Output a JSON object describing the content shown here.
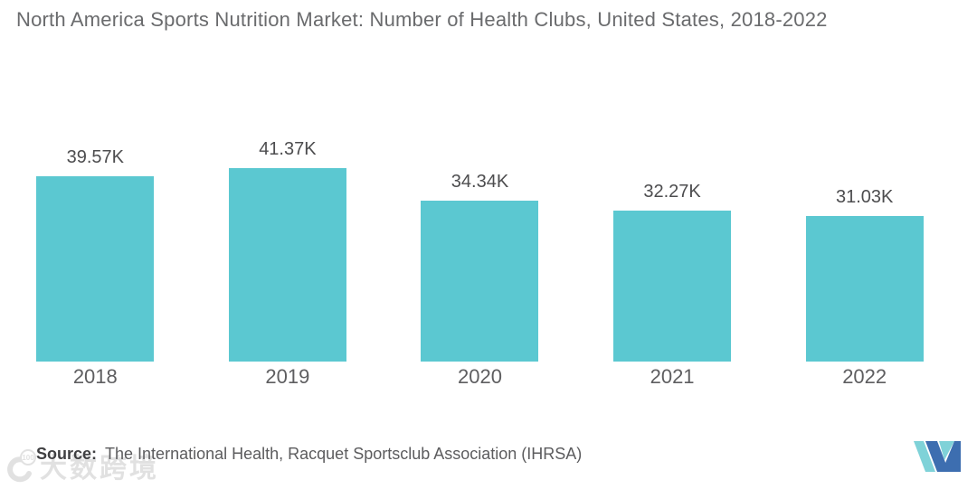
{
  "title": "North America Sports Nutrition Market: Number of Health Clubs, United States, 2018-2022",
  "chart_data": {
    "type": "bar",
    "title": "North America Sports Nutrition Market: Number of Health Clubs, United States, 2018-2022",
    "categories": [
      "2018",
      "2019",
      "2020",
      "2021",
      "2022"
    ],
    "values": [
      39.57,
      41.37,
      34.34,
      32.27,
      31.03
    ],
    "value_labels": [
      "39.57K",
      "41.37K",
      "34.34K",
      "32.27K",
      "31.03K"
    ],
    "unit": "K",
    "xlabel": "",
    "ylabel": "",
    "ylim": [
      0,
      41.37
    ],
    "grid": false,
    "legend_position": "none",
    "bar_color": "#5BC8D1"
  },
  "source": {
    "label": "Source:",
    "text": "The International Health, Racquet Sportsclub Association (IHRSA)"
  },
  "watermark": {
    "text": "大数跨境",
    "badge": "100"
  },
  "logo": {
    "name": "mordor-intelligence-m-logo",
    "blue": "#3D6EB0",
    "teal": "#7FD2D8"
  },
  "colors": {
    "title": "#6A6B6D",
    "value_label": "#4D4D4F",
    "x_tick": "#5E5E60",
    "source_label": "#404042",
    "source_text": "#5C5C5E",
    "background": "#FFFFFF"
  }
}
